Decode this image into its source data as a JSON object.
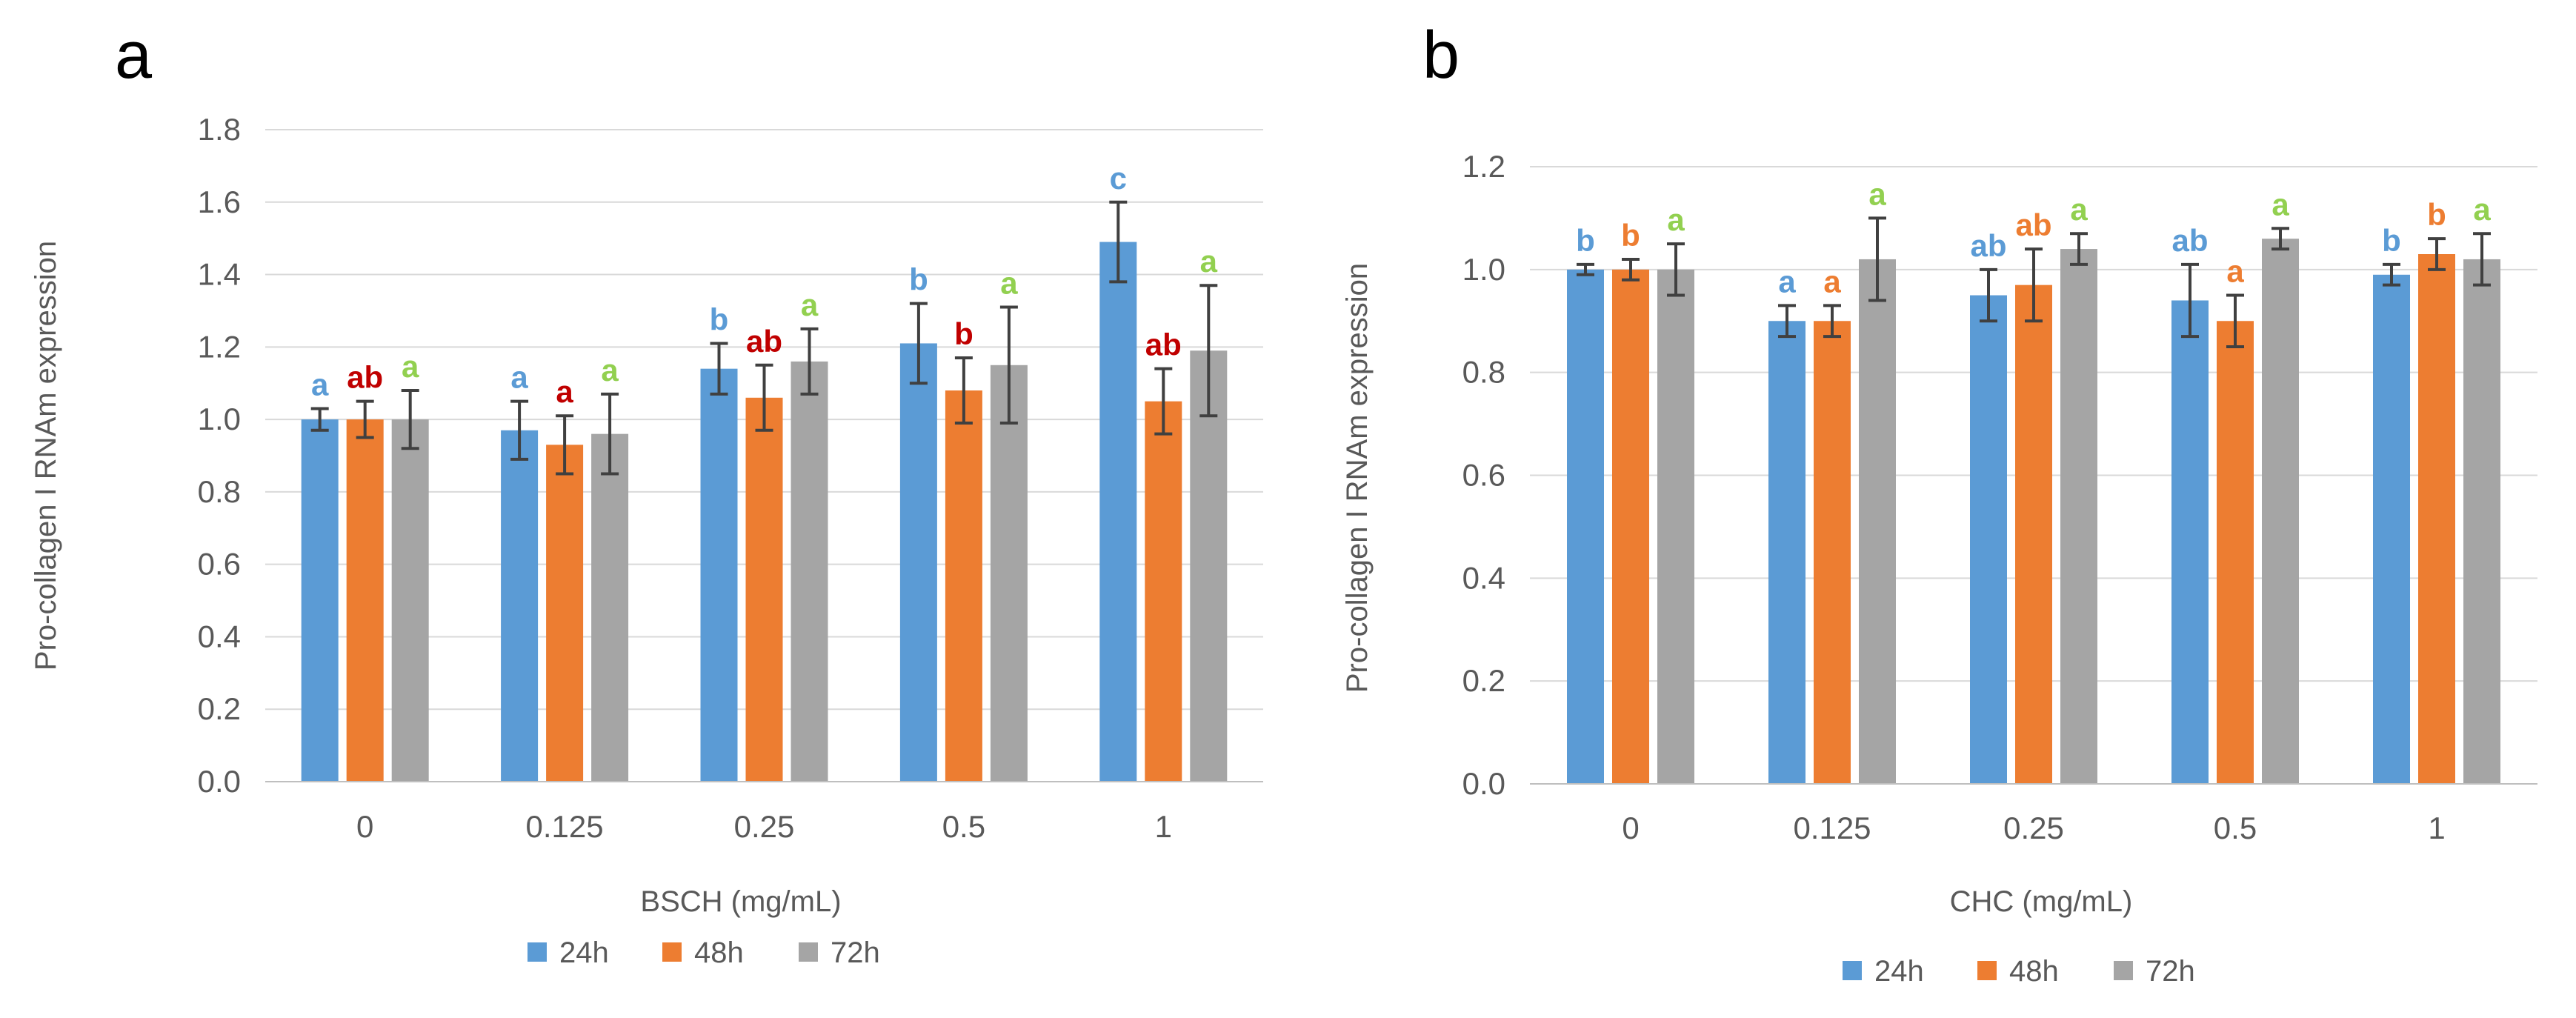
{
  "chart_data": [
    {
      "type": "bar",
      "panel_label": "a",
      "xlabel": "BSCH (mg/mL)",
      "ylabel": "Pro-collagen I RNAm expression",
      "ylim": [
        0,
        1.8
      ],
      "yticks": [
        "0.0",
        "0.2",
        "0.4",
        "0.6",
        "0.8",
        "1.0",
        "1.2",
        "1.4",
        "1.6",
        "1.8"
      ],
      "grid": true,
      "legend_position": "bottom",
      "categories": [
        "0",
        "0.125",
        "0.25",
        "0.5",
        "1"
      ],
      "series": [
        {
          "name": "24h",
          "color": "#5b9bd5",
          "values": [
            1.0,
            0.97,
            1.14,
            1.21,
            1.49
          ],
          "errors": [
            0.03,
            0.08,
            0.07,
            0.11,
            0.11
          ],
          "letters": [
            "a",
            "a",
            "b",
            "b",
            "c"
          ],
          "letter_color": "#5b9bd5"
        },
        {
          "name": "48h",
          "color": "#ed7d31",
          "values": [
            1.0,
            0.93,
            1.06,
            1.08,
            1.05
          ],
          "errors": [
            0.05,
            0.08,
            0.09,
            0.09,
            0.09
          ],
          "letters": [
            "ab",
            "a",
            "ab",
            "b",
            "ab"
          ],
          "letter_color": "#c00000"
        },
        {
          "name": "72h",
          "color": "#a5a5a5",
          "values": [
            1.0,
            0.96,
            1.16,
            1.15,
            1.19
          ],
          "errors": [
            0.08,
            0.11,
            0.09,
            0.16,
            0.18
          ],
          "letters": [
            "a",
            "a",
            "a",
            "a",
            "a"
          ],
          "letter_color": "#92d050"
        }
      ]
    },
    {
      "type": "bar",
      "panel_label": "b",
      "xlabel": "CHC (mg/mL)",
      "ylabel": "Pro-collagen I RNAm expression",
      "ylim": [
        0,
        1.2
      ],
      "yticks": [
        "0.0",
        "0.2",
        "0.4",
        "0.6",
        "0.8",
        "1.0",
        "1.2"
      ],
      "grid": true,
      "legend_position": "bottom",
      "categories": [
        "0",
        "0.125",
        "0.25",
        "0.5",
        "1"
      ],
      "series": [
        {
          "name": "24h",
          "color": "#5b9bd5",
          "values": [
            1.0,
            0.9,
            0.95,
            0.94,
            0.99
          ],
          "errors": [
            0.01,
            0.03,
            0.05,
            0.07,
            0.02
          ],
          "letters": [
            "b",
            "a",
            "ab",
            "ab",
            "b"
          ],
          "letter_color": "#5b9bd5"
        },
        {
          "name": "48h",
          "color": "#ed7d31",
          "values": [
            1.0,
            0.9,
            0.97,
            0.9,
            1.03
          ],
          "errors": [
            0.02,
            0.03,
            0.07,
            0.05,
            0.03
          ],
          "letters": [
            "b",
            "a",
            "ab",
            "a",
            "b"
          ],
          "letter_color": "#ed7d31"
        },
        {
          "name": "72h",
          "color": "#a5a5a5",
          "values": [
            1.0,
            1.02,
            1.04,
            1.06,
            1.02
          ],
          "errors": [
            0.05,
            0.08,
            0.03,
            0.02,
            0.05
          ],
          "letters": [
            "a",
            "a",
            "a",
            "a",
            "a"
          ],
          "letter_color": "#92d050"
        }
      ]
    }
  ]
}
